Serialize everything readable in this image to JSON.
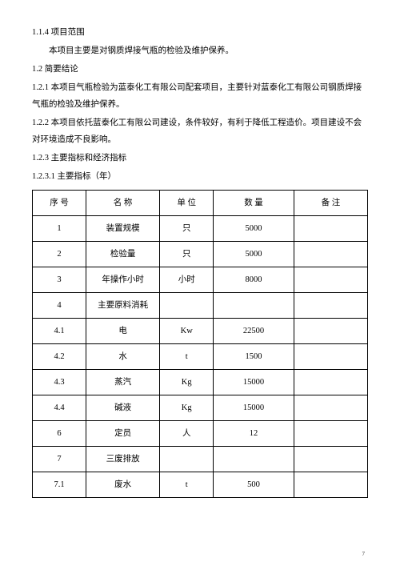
{
  "sections": {
    "s1": "1.1.4 项目范围",
    "s1_body": "本项目主要是对钢质焊接气瓶的检验及维护保养。",
    "s2": "1.2 简要结论",
    "s3": "1.2.1 本项目气瓶检验为蓝泰化工有限公司配套项目，主要针对蓝泰化工有限公司钢质焊接气瓶的检验及维护保养。",
    "s4": "1.2.2 本项目依托蓝泰化工有限公司建设，条件较好，有利于降低工程造价。项目建设不会对环境造成不良影响。",
    "s5": "1.2.3 主要指标和经济指标",
    "s6": "1.2.3.1 主要指标（年）"
  },
  "table": {
    "headers": {
      "seq": "序 号",
      "name": "名 称",
      "unit": "单 位",
      "qty": "数 量",
      "note": "备 注"
    },
    "rows": [
      {
        "seq": "1",
        "name": "装置规模",
        "unit": "只",
        "qty": "5000",
        "note": ""
      },
      {
        "seq": "2",
        "name": "检验量",
        "unit": "只",
        "qty": "5000",
        "note": ""
      },
      {
        "seq": "3",
        "name": "年操作小时",
        "unit": "小时",
        "qty": "8000",
        "note": ""
      },
      {
        "seq": "4",
        "name": "主要原料消耗",
        "unit": "",
        "qty": "",
        "note": ""
      },
      {
        "seq": "4.1",
        "name": "电",
        "unit": "Kw",
        "qty": "22500",
        "note": ""
      },
      {
        "seq": "4.2",
        "name": "水",
        "unit": "t",
        "qty": "1500",
        "note": ""
      },
      {
        "seq": "4.3",
        "name": "蒸汽",
        "unit": "Kg",
        "qty": "15000",
        "note": ""
      },
      {
        "seq": "4.4",
        "name": "碱液",
        "unit": "Kg",
        "qty": "15000",
        "note": ""
      },
      {
        "seq": "6",
        "name": "定员",
        "unit": "人",
        "qty": "12",
        "note": ""
      },
      {
        "seq": "7",
        "name": "三废排放",
        "unit": "",
        "qty": "",
        "note": ""
      },
      {
        "seq": "7.1",
        "name": "废水",
        "unit": "t",
        "qty": "500",
        "note": ""
      }
    ]
  },
  "page_number": "7"
}
